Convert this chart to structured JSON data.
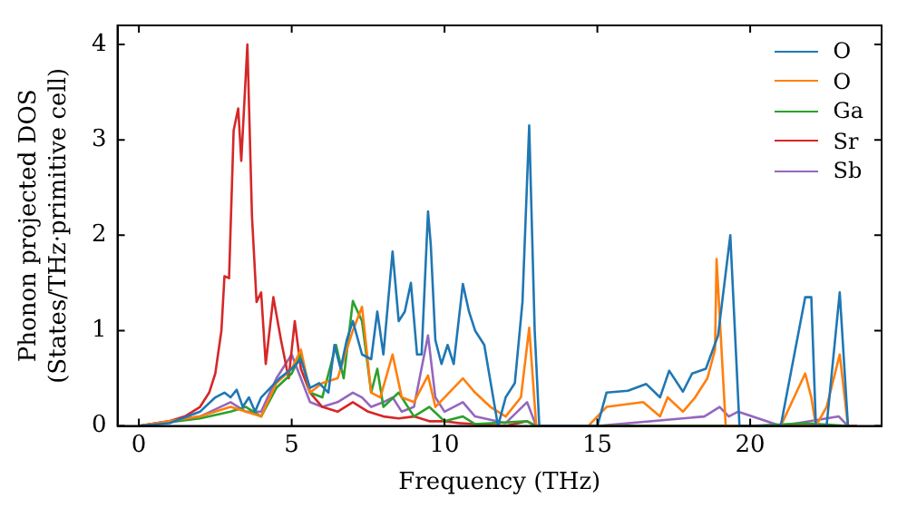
{
  "chart_data": {
    "type": "line",
    "xlabel": "Frequency (THz)",
    "ylabel": "Phonon projected DOS\n(States/THz·primitive cell)",
    "xlim": [
      -0.7,
      24.3
    ],
    "ylim": [
      0,
      4.2
    ],
    "xticks": [
      0,
      5,
      10,
      15,
      20
    ],
    "yticks": [
      0,
      1,
      2,
      3,
      4
    ],
    "grid": false,
    "legend": "top right",
    "marker": "none",
    "line_style": "solid",
    "series": [
      {
        "name": "O",
        "color": "#1f77b4",
        "x": [
          0,
          1,
          2,
          2.5,
          2.8,
          3.0,
          3.2,
          3.4,
          3.6,
          3.8,
          4.0,
          4.3,
          4.6,
          5.0,
          5.3,
          5.6,
          5.9,
          6.2,
          6.4,
          6.6,
          6.8,
          7.0,
          7.3,
          7.6,
          7.8,
          8.0,
          8.3,
          8.5,
          8.7,
          8.9,
          9.1,
          9.25,
          9.46,
          9.55,
          9.7,
          9.9,
          10.1,
          10.3,
          10.6,
          10.8,
          11.0,
          11.3,
          11.75,
          12.0,
          12.3,
          12.55,
          12.77,
          12.95,
          13.1,
          15.0,
          15.3,
          16.0,
          16.6,
          17.05,
          17.35,
          17.8,
          18.1,
          18.55,
          18.95,
          19.35,
          19.65,
          21.0,
          21.8,
          22.0,
          22.15,
          22.5,
          22.93,
          23.2
        ],
        "values": [
          0,
          0.03,
          0.15,
          0.3,
          0.35,
          0.3,
          0.38,
          0.2,
          0.3,
          0.15,
          0.3,
          0.4,
          0.5,
          0.6,
          0.7,
          0.4,
          0.45,
          0.35,
          0.85,
          0.6,
          0.9,
          1.1,
          0.75,
          0.7,
          1.2,
          0.75,
          1.83,
          1.1,
          1.2,
          1.5,
          0.75,
          0.75,
          2.25,
          1.9,
          0.9,
          0.65,
          0.85,
          0.65,
          1.49,
          1.2,
          1.0,
          0.85,
          0,
          0.3,
          0.45,
          1.3,
          3.15,
          1.0,
          0,
          0,
          0.35,
          0.37,
          0.44,
          0.3,
          0.58,
          0.36,
          0.55,
          0.6,
          0.95,
          2.0,
          0,
          0,
          1.35,
          1.35,
          0,
          0,
          1.4,
          0
        ]
      },
      {
        "name": "O",
        "color": "#ff7f0e",
        "x": [
          0,
          2,
          3,
          3.5,
          4,
          4.5,
          5,
          5.3,
          5.6,
          6,
          6.5,
          7.0,
          7.3,
          7.6,
          7.9,
          8.3,
          8.6,
          9.0,
          9.46,
          9.7,
          10.0,
          10.6,
          11.0,
          11.5,
          12.0,
          12.5,
          12.77,
          13.0,
          14.7,
          15.3,
          16.5,
          17.05,
          17.3,
          17.8,
          18.2,
          18.6,
          18.85,
          18.9,
          19.2,
          21.0,
          21.8,
          22.0,
          22.15,
          22.5,
          22.93,
          23.2
        ],
        "values": [
          0,
          0.1,
          0.2,
          0.15,
          0.1,
          0.45,
          0.6,
          0.8,
          0.35,
          0.45,
          0.5,
          1.0,
          1.25,
          0.35,
          0.3,
          0.75,
          0.3,
          0.25,
          0.53,
          0.2,
          0.3,
          0.5,
          0.35,
          0.2,
          0.1,
          0.3,
          1.03,
          0,
          0,
          0.2,
          0.25,
          0.1,
          0.3,
          0.15,
          0.3,
          0.5,
          0.8,
          1.75,
          0,
          0,
          0.55,
          0.3,
          0,
          0.2,
          0.75,
          0
        ]
      },
      {
        "name": "Ga",
        "color": "#2ca02c",
        "x": [
          0,
          2,
          3,
          3.5,
          4,
          4.5,
          5,
          5.3,
          5.6,
          6,
          6.45,
          6.7,
          7.0,
          7.3,
          7.6,
          7.8,
          8.0,
          8.5,
          9.0,
          9.5,
          10,
          10.6,
          11,
          12.7,
          13,
          20,
          21.8,
          23.2
        ],
        "values": [
          0,
          0.08,
          0.15,
          0.2,
          0.1,
          0.4,
          0.55,
          0.75,
          0.35,
          0.3,
          0.85,
          0.5,
          1.31,
          1.1,
          0.35,
          0.6,
          0.2,
          0.35,
          0.1,
          0.2,
          0.05,
          0.1,
          0.02,
          0.05,
          0,
          0,
          0.03,
          0
        ]
      },
      {
        "name": "Sr",
        "color": "#d62728",
        "x": [
          0,
          1,
          1.5,
          2,
          2.3,
          2.5,
          2.7,
          2.8,
          2.95,
          3.1,
          3.25,
          3.35,
          3.55,
          3.7,
          3.85,
          4.0,
          4.15,
          4.4,
          4.65,
          4.9,
          5.1,
          5.3,
          5.6,
          6.0,
          6.5,
          7.0,
          7.5,
          8.0,
          8.5,
          9.0,
          9.5,
          10,
          10.5,
          11,
          12,
          12.7,
          13,
          15,
          20,
          23.5
        ],
        "values": [
          0,
          0.05,
          0.1,
          0.2,
          0.35,
          0.55,
          1.0,
          1.57,
          1.55,
          3.1,
          3.33,
          2.78,
          4.0,
          2.2,
          1.3,
          1.4,
          0.65,
          1.35,
          0.9,
          0.5,
          1.1,
          0.6,
          0.35,
          0.2,
          0.15,
          0.25,
          0.15,
          0.1,
          0.08,
          0.1,
          0.05,
          0.05,
          0.03,
          0.02,
          0,
          0.05,
          0,
          0,
          0,
          0
        ]
      },
      {
        "name": "Sb",
        "color": "#9467bd",
        "x": [
          0,
          2,
          3,
          3.5,
          4,
          4.5,
          5,
          5.3,
          5.6,
          6,
          6.5,
          7.0,
          7.3,
          7.6,
          8.0,
          8.3,
          8.6,
          9.0,
          9.46,
          9.7,
          10.0,
          10.6,
          11.0,
          12.0,
          12.7,
          13.0,
          15.0,
          18.5,
          19.0,
          19.3,
          19.6,
          21.0,
          22.9,
          23.2
        ],
        "values": [
          0,
          0.1,
          0.25,
          0.15,
          0.15,
          0.5,
          0.75,
          0.5,
          0.25,
          0.2,
          0.25,
          0.35,
          0.3,
          0.2,
          0.25,
          0.3,
          0.15,
          0.2,
          0.95,
          0.3,
          0.15,
          0.25,
          0.1,
          0.03,
          0.25,
          0,
          0,
          0.1,
          0.2,
          0.1,
          0.15,
          0,
          0.1,
          0
        ]
      }
    ]
  }
}
